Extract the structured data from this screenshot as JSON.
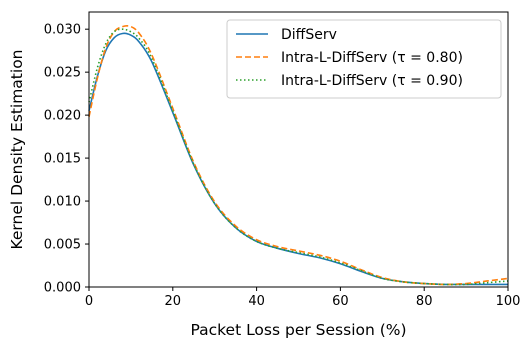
{
  "chart_data": {
    "type": "line",
    "title": "",
    "xlabel": "Packet Loss per Session (%)",
    "ylabel": "Kernel Density Estimation",
    "xlim": [
      0,
      100
    ],
    "ylim": [
      0.0,
      0.032
    ],
    "x_ticks": [
      0,
      20,
      40,
      60,
      80,
      100
    ],
    "x_tick_labels": [
      "0",
      "20",
      "40",
      "60",
      "80",
      "100"
    ],
    "y_ticks": [
      0.0,
      0.005,
      0.01,
      0.015,
      0.02,
      0.025,
      0.03
    ],
    "y_tick_labels": [
      "0.000",
      "0.005",
      "0.010",
      "0.015",
      "0.020",
      "0.025",
      "0.030"
    ],
    "grid": false,
    "legend_position": "top-right",
    "series": [
      {
        "name": "DiffServ",
        "color": "#1f77b4",
        "style": "solid",
        "x": [
          0,
          2,
          4,
          6,
          8,
          10,
          12,
          15,
          20,
          25,
          30,
          35,
          40,
          45,
          50,
          55,
          60,
          65,
          70,
          75,
          80,
          85,
          90,
          95,
          100
        ],
        "y": [
          0.0205,
          0.0245,
          0.0275,
          0.029,
          0.0295,
          0.0293,
          0.0285,
          0.0262,
          0.0203,
          0.0142,
          0.0097,
          0.0069,
          0.0053,
          0.0045,
          0.0039,
          0.0034,
          0.0027,
          0.0018,
          0.001,
          0.0006,
          0.0004,
          0.0003,
          0.0003,
          0.0003,
          0.0003
        ]
      },
      {
        "name": "Intra-L-DiffServ (τ = 0.80)",
        "color": "#ff7f0e",
        "style": "dashed",
        "x": [
          0,
          2,
          4,
          6,
          8,
          10,
          12,
          15,
          20,
          25,
          30,
          35,
          40,
          45,
          50,
          55,
          60,
          65,
          70,
          75,
          80,
          85,
          90,
          95,
          100
        ],
        "y": [
          0.0198,
          0.0243,
          0.0278,
          0.0297,
          0.0303,
          0.0303,
          0.0295,
          0.027,
          0.0208,
          0.0145,
          0.0099,
          0.0071,
          0.0055,
          0.0047,
          0.0042,
          0.0037,
          0.003,
          0.002,
          0.0011,
          0.0006,
          0.0004,
          0.0003,
          0.0004,
          0.0007,
          0.001
        ]
      },
      {
        "name": "Intra-L-DiffServ (τ = 0.90)",
        "color": "#2ca02c",
        "style": "dotted",
        "x": [
          0,
          2,
          4,
          6,
          8,
          10,
          12,
          15,
          20,
          25,
          30,
          35,
          40,
          45,
          50,
          55,
          60,
          65,
          70,
          75,
          80,
          85,
          90,
          95,
          100
        ],
        "y": [
          0.0215,
          0.0255,
          0.0283,
          0.0297,
          0.03,
          0.0297,
          0.0289,
          0.0266,
          0.0205,
          0.0143,
          0.0097,
          0.0069,
          0.0053,
          0.0045,
          0.004,
          0.0035,
          0.0028,
          0.0019,
          0.001,
          0.0006,
          0.0004,
          0.0003,
          0.0003,
          0.0005,
          0.0007
        ]
      }
    ]
  }
}
